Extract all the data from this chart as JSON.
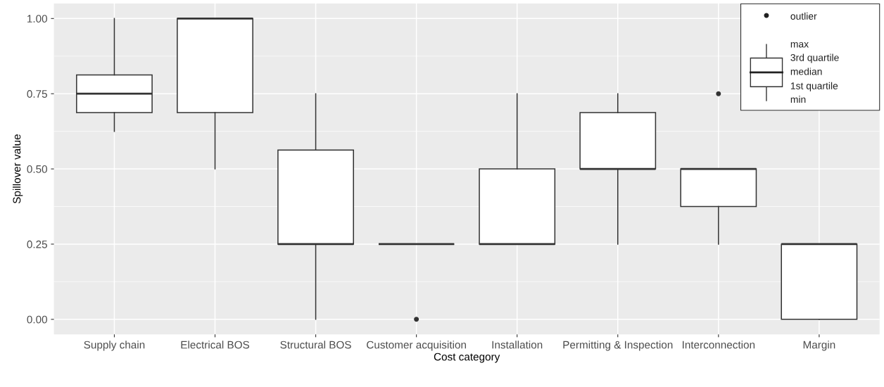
{
  "chart_data": {
    "type": "box",
    "xlabel": "Cost category",
    "ylabel": "Spillover value",
    "categories": [
      "Supply chain",
      "Electrical BOS",
      "Structural BOS",
      "Customer acquisition",
      "Installation",
      "Permitting & Inspection",
      "Interconnection",
      "Margin"
    ],
    "boxes": [
      {
        "low": 0.625,
        "q1": 0.6875,
        "median": 0.75,
        "q3": 0.8125,
        "high": 1.0
      },
      {
        "low": 0.5,
        "q1": 0.6875,
        "median": 1.0,
        "q3": 1.0,
        "high": 1.0
      },
      {
        "low": 0.0,
        "q1": 0.25,
        "median": 0.25,
        "q3": 0.5625,
        "high": 0.75
      },
      {
        "low": 0.25,
        "q1": 0.25,
        "median": 0.25,
        "q3": 0.25,
        "high": 0.25,
        "outliers": [
          0.0
        ]
      },
      {
        "low": 0.25,
        "q1": 0.25,
        "median": 0.25,
        "q3": 0.5,
        "high": 0.75
      },
      {
        "low": 0.25,
        "q1": 0.5,
        "median": 0.5,
        "q3": 0.6875,
        "high": 0.75
      },
      {
        "low": 0.25,
        "q1": 0.375,
        "median": 0.5,
        "q3": 0.5,
        "high": 0.5,
        "outliers": [
          0.75
        ]
      },
      {
        "low": 0.0,
        "q1": 0.0,
        "median": 0.25,
        "q3": 0.25,
        "high": 0.25
      }
    ],
    "ylim": [
      -0.05,
      1.05
    ],
    "yticks": [
      {
        "value": 0,
        "label": "0.00"
      },
      {
        "value": 0.25,
        "label": "0.25"
      },
      {
        "value": 0.5,
        "label": "0.50"
      },
      {
        "value": 0.75,
        "label": "0.75"
      },
      {
        "value": 1,
        "label": "1.00"
      }
    ],
    "grid": true,
    "annotations": [
      "outlier",
      "max",
      "3rd quartile",
      "median",
      "1st quartile",
      "min"
    ]
  }
}
